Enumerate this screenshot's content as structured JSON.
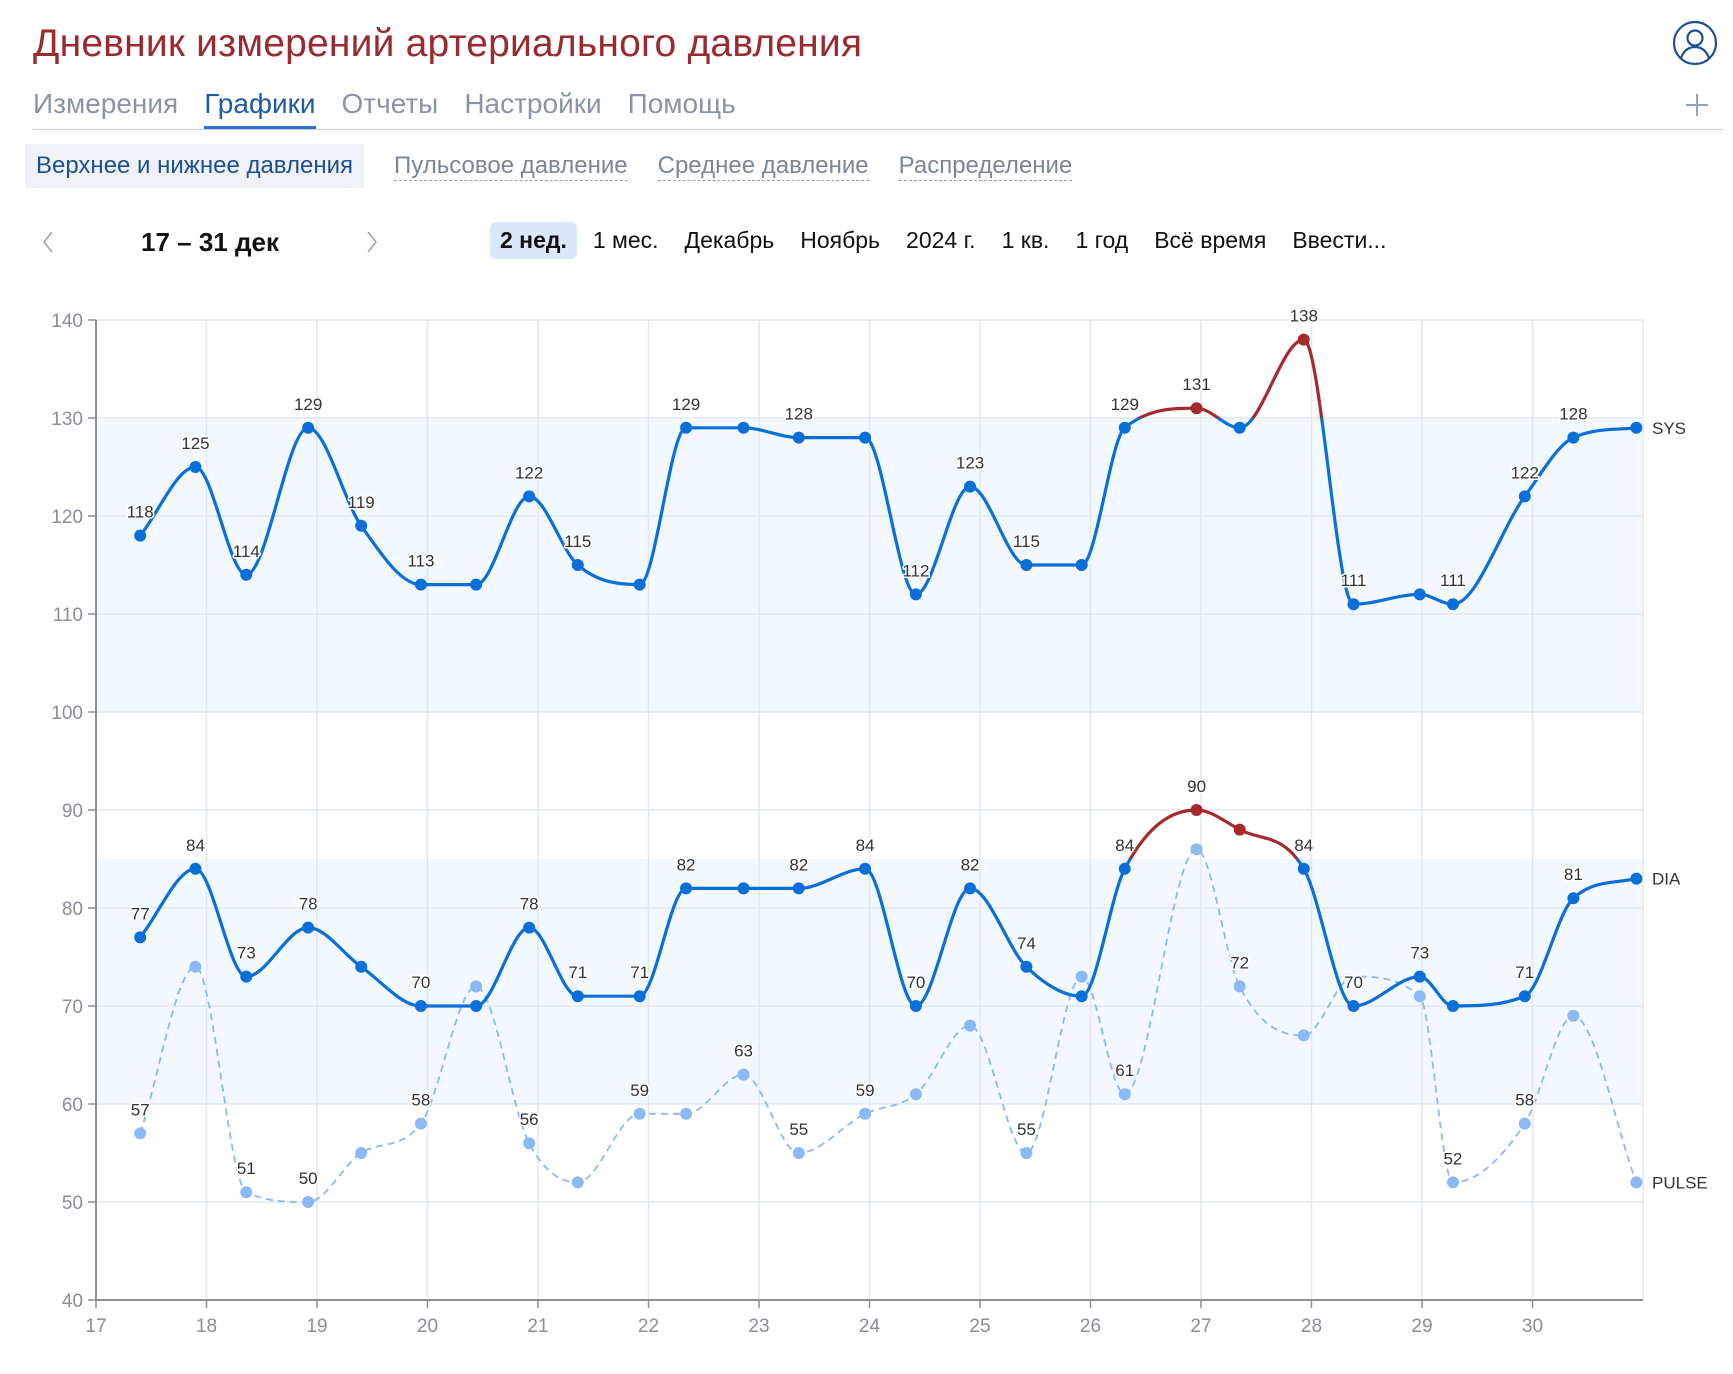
{
  "header": {
    "title": "Дневник измерений артериального давления",
    "avatar_icon": "user-circle-icon",
    "add_icon": "plus-icon"
  },
  "nav": {
    "tabs": [
      {
        "label": "Измерения",
        "active": false
      },
      {
        "label": "Графики",
        "active": true
      },
      {
        "label": "Отчеты",
        "active": false
      },
      {
        "label": "Настройки",
        "active": false
      },
      {
        "label": "Помощь",
        "active": false
      }
    ]
  },
  "subtabs": [
    {
      "label": "Верхнее и нижнее давления",
      "active": true
    },
    {
      "label": "Пульсовое давление",
      "active": false
    },
    {
      "label": "Среднее давление",
      "active": false
    },
    {
      "label": "Распределение",
      "active": false
    }
  ],
  "period": {
    "prev_icon": "chevron-left-icon",
    "next_icon": "chevron-right-icon",
    "range": "17 – 31 дек",
    "presets": [
      {
        "label": "2 нед.",
        "active": true
      },
      {
        "label": "1 мес.",
        "active": false
      },
      {
        "label": "Декабрь",
        "active": false
      },
      {
        "label": "Ноябрь",
        "active": false
      },
      {
        "label": "2024 г.",
        "active": false
      },
      {
        "label": "1 кв.",
        "active": false
      },
      {
        "label": "1 год",
        "active": false
      },
      {
        "label": "Всё время",
        "active": false
      },
      {
        "label": "Ввести...",
        "active": false
      }
    ]
  },
  "colors": {
    "sys_dia_line": "#0a6fd8",
    "pulse_line": "#8ab9f5",
    "high_line": "#a52a2e",
    "band_fill": "#f3f8fe",
    "grid": "#e2e7f0",
    "axis": "#8b8d98",
    "title": "#9a2a2f",
    "active_tab": "#1f5aa6"
  },
  "chart_data": {
    "type": "line",
    "title": "",
    "xlabel": "",
    "ylabel": "",
    "xlim": [
      17,
      31
    ],
    "ylim": [
      40,
      140
    ],
    "xticks": [
      17,
      18,
      19,
      20,
      21,
      22,
      23,
      24,
      25,
      26,
      27,
      28,
      29,
      30
    ],
    "yticks": [
      40,
      50,
      60,
      70,
      80,
      90,
      100,
      110,
      120,
      130,
      140
    ],
    "grid": true,
    "normal_bands": [
      {
        "series": "SYS",
        "from": 100,
        "to": 130
      },
      {
        "series": "DIA",
        "from": 60,
        "to": 85
      }
    ],
    "thresholds": {
      "SYS": 130,
      "DIA": 85
    },
    "x": [
      17.4,
      17.9,
      18.36,
      18.92,
      19.4,
      19.94,
      20.44,
      20.92,
      21.36,
      21.92,
      22.34,
      22.86,
      23.36,
      23.96,
      24.42,
      24.91,
      25.42,
      25.92,
      26.31,
      26.96,
      27.35,
      27.93,
      28.38,
      28.98,
      29.28,
      29.93,
      30.37,
      30.94
    ],
    "series": [
      {
        "name": "SYS",
        "values": [
          118,
          125,
          114,
          129,
          119,
          113,
          113,
          122,
          115,
          113,
          129,
          129,
          128,
          128,
          112,
          123,
          115,
          115,
          129,
          131,
          129,
          138,
          111,
          112,
          111,
          122,
          128,
          129
        ],
        "labels": [
          118,
          125,
          114,
          129,
          119,
          113,
          null,
          122,
          115,
          null,
          129,
          null,
          128,
          null,
          112,
          123,
          115,
          null,
          129,
          131,
          null,
          138,
          111,
          null,
          111,
          122,
          128,
          null
        ]
      },
      {
        "name": "DIA",
        "values": [
          77,
          84,
          73,
          78,
          74,
          70,
          70,
          78,
          71,
          71,
          82,
          82,
          82,
          84,
          70,
          82,
          74,
          71,
          84,
          90,
          88,
          84,
          70,
          73,
          70,
          71,
          81,
          83
        ],
        "labels": [
          77,
          84,
          73,
          78,
          null,
          70,
          null,
          78,
          71,
          71,
          82,
          null,
          82,
          84,
          70,
          82,
          74,
          null,
          84,
          90,
          null,
          84,
          70,
          73,
          null,
          71,
          81,
          null
        ]
      },
      {
        "name": "PULSE",
        "values": [
          57,
          74,
          51,
          50,
          55,
          58,
          72,
          56,
          52,
          59,
          59,
          63,
          55,
          59,
          61,
          68,
          55,
          73,
          61,
          86,
          72,
          67,
          73,
          71,
          52,
          58,
          69,
          52
        ],
        "labels": [
          57,
          null,
          51,
          50,
          null,
          58,
          null,
          56,
          null,
          59,
          null,
          63,
          55,
          59,
          null,
          null,
          55,
          null,
          61,
          null,
          72,
          null,
          null,
          null,
          52,
          58,
          null,
          null
        ],
        "hidden_points": [
          22
        ]
      }
    ],
    "legend": {
      "position": "right-end-labels",
      "entries": [
        "SYS",
        "DIA",
        "PULSE"
      ]
    }
  }
}
